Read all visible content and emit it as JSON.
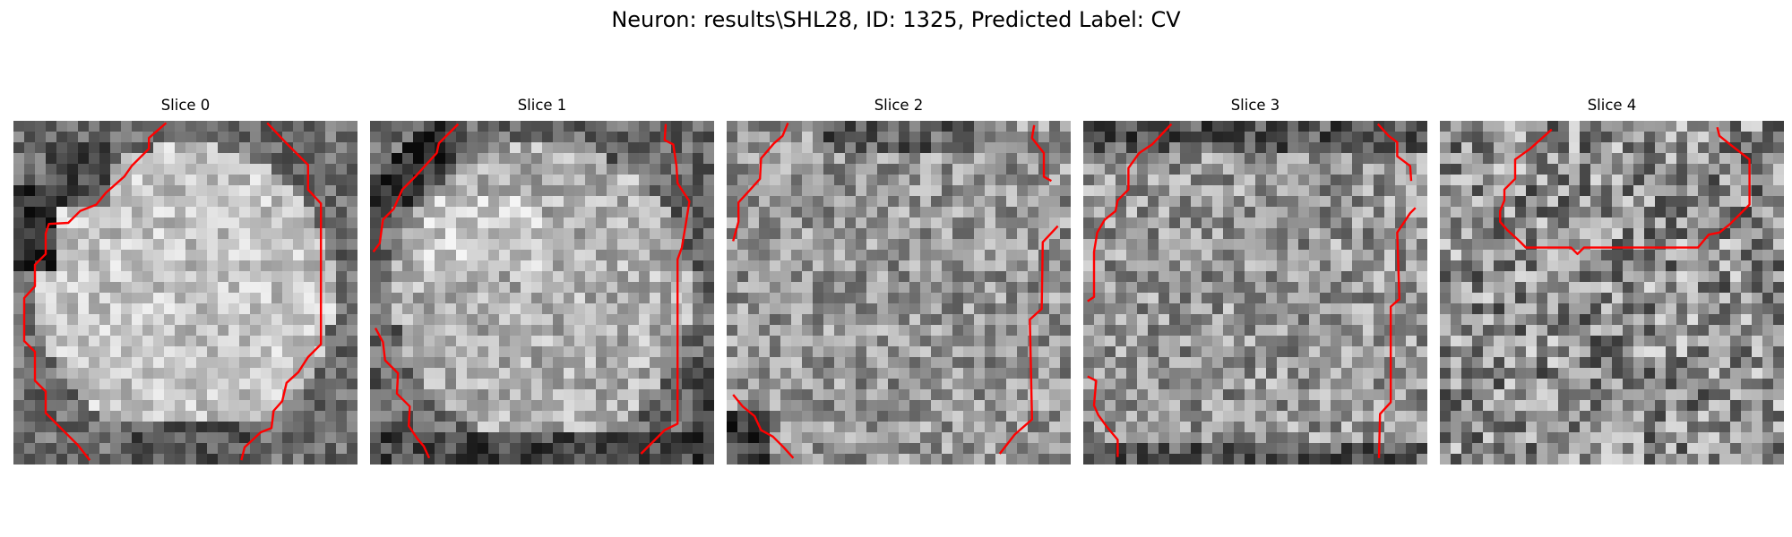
{
  "figure": {
    "title": "Neuron: results\\SHL28, ID: 1325, Predicted Label: CV"
  },
  "panels": [
    {
      "title": "Slice 0",
      "seed": 11,
      "variant": "cell-bright-left-dark"
    },
    {
      "title": "Slice 1",
      "seed": 23,
      "variant": "cell-bright-topleft"
    },
    {
      "title": "Slice 2",
      "seed": 37,
      "variant": "cell-mid"
    },
    {
      "title": "Slice 3",
      "seed": 53,
      "variant": "cell-mid-dark-top"
    },
    {
      "title": "Slice 4",
      "seed": 71,
      "variant": "noise"
    }
  ],
  "style": {
    "contour_color": "#ff0000",
    "colormap": "gray"
  }
}
